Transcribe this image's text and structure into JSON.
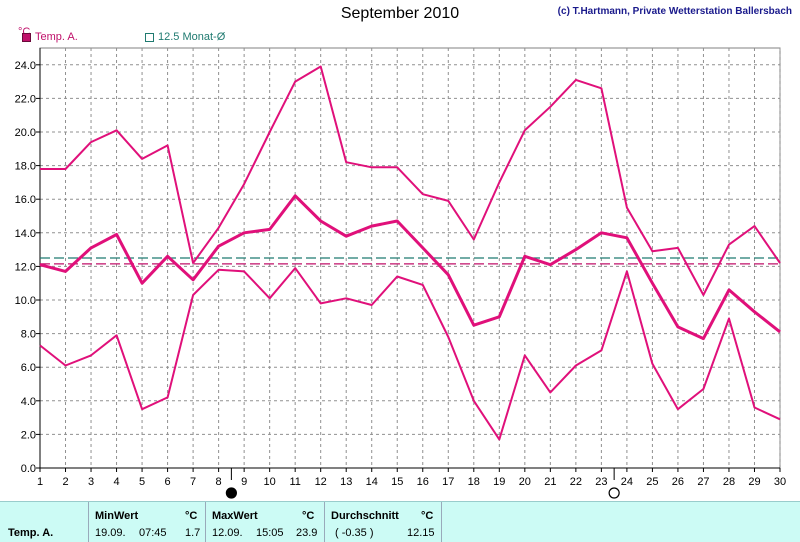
{
  "header": {
    "title": "September 2010",
    "copyright": "(c) T.Hartmann, Private Wetterstation Ballersbach",
    "unit": "°C"
  },
  "legend": [
    {
      "label": "Temp. A.",
      "color": "#c0106a"
    },
    {
      "label": "12.5 Monat-Ø",
      "color": "#1f7a70"
    }
  ],
  "chart_data": {
    "type": "line",
    "x": [
      1,
      2,
      3,
      4,
      5,
      6,
      7,
      8,
      9,
      10,
      11,
      12,
      13,
      14,
      15,
      16,
      17,
      18,
      19,
      20,
      21,
      22,
      23,
      24,
      25,
      26,
      27,
      28,
      29,
      30
    ],
    "xlim": [
      1,
      30
    ],
    "ylim": [
      0,
      25
    ],
    "yticks": [
      "0.0",
      "2.0",
      "4.0",
      "6.0",
      "8.0",
      "10.0",
      "12.0",
      "14.0",
      "16.0",
      "18.0",
      "20.0",
      "22.0",
      "24.0"
    ],
    "ytick_values": [
      0,
      2,
      4,
      6,
      8,
      10,
      12,
      14,
      16,
      18,
      20,
      22,
      24
    ],
    "grid": true,
    "series": [
      {
        "role": "max",
        "values": [
          17.8,
          17.8,
          19.4,
          20.1,
          18.4,
          19.2,
          12.2,
          14.3,
          16.9,
          20.0,
          23.0,
          23.9,
          18.2,
          17.9,
          17.9,
          16.3,
          15.9,
          13.6,
          17.0,
          20.1,
          21.5,
          23.1,
          22.6,
          15.5,
          12.9,
          13.1,
          10.3,
          13.3,
          14.4,
          12.2
        ]
      },
      {
        "role": "mean",
        "values": [
          12.1,
          11.7,
          13.1,
          13.9,
          11.0,
          12.6,
          11.2,
          13.2,
          14.0,
          14.2,
          16.2,
          14.7,
          13.8,
          14.4,
          14.7,
          13.1,
          11.5,
          8.5,
          9.0,
          12.6,
          12.1,
          13.0,
          14.0,
          13.7,
          11.0,
          8.4,
          7.7,
          10.6,
          9.3,
          8.1
        ]
      },
      {
        "role": "min",
        "values": [
          7.3,
          6.1,
          6.7,
          7.9,
          3.5,
          4.2,
          10.3,
          11.8,
          11.7,
          10.1,
          11.9,
          9.8,
          10.1,
          9.7,
          11.4,
          10.9,
          7.8,
          4.0,
          1.7,
          6.7,
          4.5,
          6.1,
          7.0,
          11.7,
          6.2,
          3.5,
          4.7,
          8.9,
          3.6,
          2.9
        ]
      }
    ],
    "reference_lines": [
      {
        "name": "12.5 Monat-Ø",
        "value": 12.5,
        "color": "#1f7a70"
      },
      {
        "role": "month-mean",
        "value": 12.15,
        "color": "#c0106a"
      }
    ],
    "moon_phases": [
      {
        "day": 8.5,
        "phase": "new"
      },
      {
        "day": 23.5,
        "phase": "full"
      }
    ]
  },
  "stats": {
    "row_label": "Temp. A.",
    "min": {
      "title": "MinWert",
      "unit": "°C",
      "date": "19.09.",
      "time": "07:45",
      "value": "1.7"
    },
    "max": {
      "title": "MaxWert",
      "unit": "°C",
      "date": "12.09.",
      "time": "15:05",
      "value": "23.9"
    },
    "avg": {
      "title": "Durchschnitt",
      "unit": "°C",
      "delta": "( -0.35 )",
      "value": "12.15"
    }
  }
}
